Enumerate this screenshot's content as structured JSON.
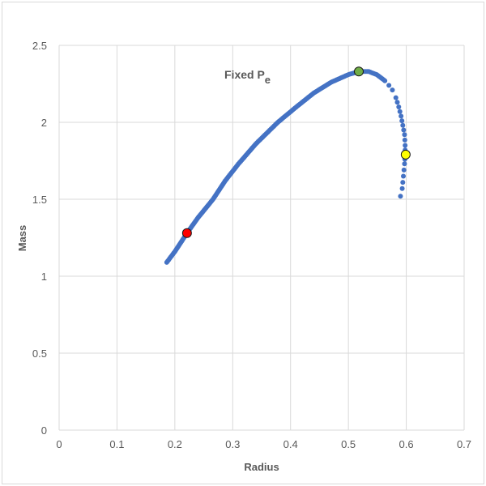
{
  "chart_data": {
    "type": "scatter",
    "title": "",
    "xlabel": "Radius",
    "ylabel": "Mass",
    "xlim": [
      0,
      0.7
    ],
    "ylim": [
      0,
      2.5
    ],
    "xticks": [
      "0",
      "0.1",
      "0.2",
      "0.3",
      "0.4",
      "0.5",
      "0.6",
      "0.7"
    ],
    "yticks": [
      "0",
      "0.5",
      "1",
      "1.5",
      "2",
      "2.5"
    ],
    "grid": true,
    "legend": null,
    "annotations": [
      {
        "text": "Fixed P",
        "subscript": "e",
        "x": 0.29,
        "y": 2.3
      }
    ],
    "series": [
      {
        "name": "mass-radius curve",
        "color": "#4472c4",
        "marker": "dot",
        "points": [
          [
            0.186,
            1.09
          ],
          [
            0.2,
            1.16
          ],
          [
            0.221,
            1.28
          ],
          [
            0.24,
            1.38
          ],
          [
            0.266,
            1.5
          ],
          [
            0.287,
            1.62
          ],
          [
            0.31,
            1.73
          ],
          [
            0.34,
            1.86
          ],
          [
            0.378,
            2.0
          ],
          [
            0.41,
            2.1
          ],
          [
            0.44,
            2.19
          ],
          [
            0.47,
            2.26
          ],
          [
            0.5,
            2.31
          ],
          [
            0.518,
            2.33
          ],
          [
            0.535,
            2.33
          ],
          [
            0.549,
            2.31
          ],
          [
            0.563,
            2.27
          ],
          [
            0.57,
            2.24
          ],
          [
            0.576,
            2.21
          ],
          [
            0.582,
            2.16
          ],
          [
            0.587,
            2.1
          ],
          [
            0.591,
            2.04
          ],
          [
            0.594,
            1.98
          ],
          [
            0.597,
            1.92
          ],
          [
            0.598,
            1.85
          ],
          [
            0.598,
            1.79
          ],
          [
            0.597,
            1.73
          ],
          [
            0.595,
            1.65
          ],
          [
            0.593,
            1.57
          ],
          [
            0.59,
            1.52
          ]
        ]
      },
      {
        "name": "red point",
        "color": "#ff0000",
        "points": [
          [
            0.221,
            1.28
          ]
        ]
      },
      {
        "name": "green point",
        "color": "#70ad47",
        "points": [
          [
            0.518,
            2.33
          ]
        ]
      },
      {
        "name": "yellow point",
        "color": "#ffff00",
        "points": [
          [
            0.599,
            1.79
          ]
        ]
      }
    ]
  }
}
